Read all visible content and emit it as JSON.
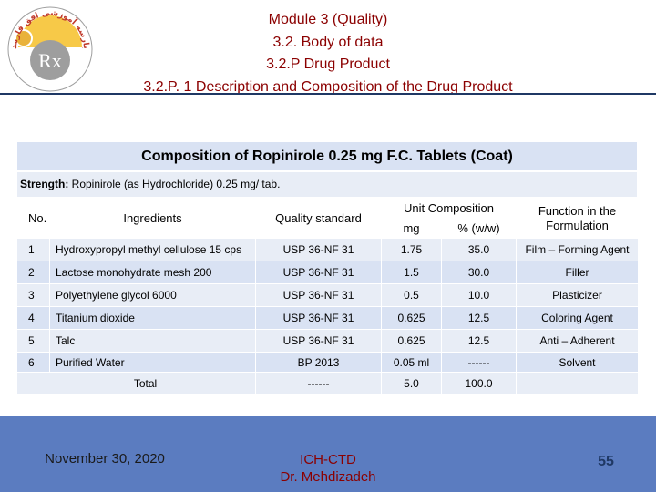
{
  "header": {
    "line1": "Module 3 (Quality)",
    "line2": "3.2. Body of data",
    "line3": "3.2.P Drug Product",
    "line4": "3.2.P. 1 Description and Composition of the Drug Product"
  },
  "logo": {
    "arc_text": "بارسه آموزشی افق فارمد",
    "mark": "Rx"
  },
  "table": {
    "title": "Composition of  Ropinirole  0.25 mg F.C. Tablets (Coat)",
    "strength_label": "Strength:",
    "strength_value": " Ropinirole (as Hydrochloride) 0.25 mg/ tab.",
    "headers": {
      "no": "No.",
      "ingredients": "Ingredients",
      "quality": "Quality standard",
      "unit_composition": "Unit Composition",
      "mg": "mg",
      "percent": "% (w/w)",
      "function": "Function in the Formulation"
    },
    "rows": [
      {
        "no": "1",
        "ingredient": "Hydroxypropyl methyl cellulose 15 cps",
        "standard": "USP 36-NF 31",
        "mg": "1.75",
        "percent": "35.0",
        "function": "Film – Forming Agent"
      },
      {
        "no": "2",
        "ingredient": "Lactose monohydrate mesh 200",
        "standard": "USP 36-NF 31",
        "mg": "1.5",
        "percent": "30.0",
        "function": "Filler"
      },
      {
        "no": "3",
        "ingredient": "Polyethylene glycol 6000",
        "standard": "USP 36-NF 31",
        "mg": "0.5",
        "percent": "10.0",
        "function": "Plasticizer"
      },
      {
        "no": "4",
        "ingredient": "Titanium dioxide",
        "standard": "USP 36-NF 31",
        "mg": "0.625",
        "percent": "12.5",
        "function": "Coloring Agent"
      },
      {
        "no": "5",
        "ingredient": "Talc",
        "standard": "USP 36-NF 31",
        "mg": "0.625",
        "percent": "12.5",
        "function": "Anti – Adherent"
      },
      {
        "no": "6",
        "ingredient": "Purified Water",
        "standard": "BP 2013",
        "mg": "0.05 ml",
        "percent": "------",
        "function": "Solvent"
      }
    ],
    "total": {
      "label": "Total",
      "standard": "------",
      "mg": "5.0",
      "percent": "100.0"
    }
  },
  "footer": {
    "date": "November 30, 2020",
    "course": "ICH-CTD",
    "author": "Dr. Mehdizadeh",
    "page": "55"
  },
  "colors": {
    "header_text": "#8b0000",
    "header_rule": "#1f3864",
    "row_dark": "#d9e2f3",
    "row_light": "#e8edf6",
    "footer_bg": "#5b7cc0",
    "page_number": "#1f3864"
  }
}
